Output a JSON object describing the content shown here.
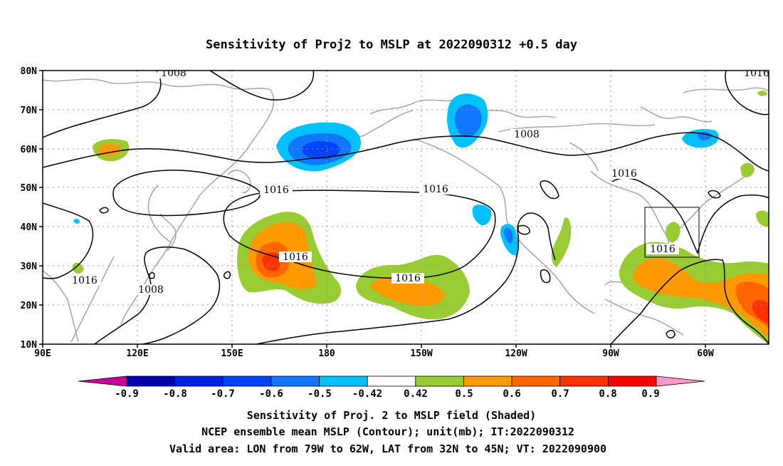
{
  "title": "Sensitivity of Proj2 to MSLP at 2022090312 +0.5 day",
  "axes": {
    "x_ticks": [
      "90E",
      "120E",
      "150E",
      "180",
      "150W",
      "120W",
      "90W",
      "60W"
    ],
    "y_ticks": [
      "80N",
      "70N",
      "60N",
      "50N",
      "40N",
      "30N",
      "20N",
      "10N"
    ]
  },
  "contour_labels": [
    "1008",
    "1008",
    "1008",
    "1016",
    "1016",
    "1016",
    "1016",
    "1016",
    "1016",
    "1016",
    "1016"
  ],
  "colorbar": {
    "labels": [
      "-0.9",
      "-0.8",
      "-0.7",
      "-0.6",
      "-0.5",
      "-0.42",
      "0.42",
      "0.5",
      "0.6",
      "0.7",
      "0.8",
      "0.9"
    ],
    "colors": [
      "#ff99cc",
      "#0000aa",
      "#0022dd",
      "#0044ff",
      "#1177ff",
      "#00c0ff",
      "#ffffff",
      "#99cc33",
      "#ff9900",
      "#ff6600",
      "#ff3300",
      "#ff0000",
      "#ff99cc"
    ],
    "left_end_color": "#cc0099"
  },
  "captions": [
    "Sensitivity of Proj. 2 to MSLP field (Shaded)",
    "NCEP ensemble mean MSLP (Contour); unit(mb); IT:2022090312",
    "Valid area: LON from 79W to 62W, LAT from 32N to 45N; VT: 2022090900"
  ]
}
